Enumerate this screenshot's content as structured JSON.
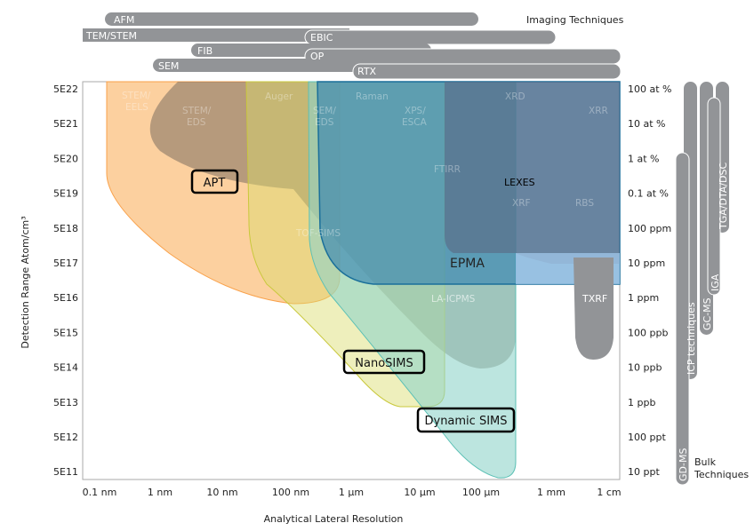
{
  "imaging": {
    "title": "Imaging Techniques",
    "bars": [
      "AFM",
      "TEM/STEM",
      "EBIC",
      "FIB",
      "OP",
      "SEM",
      "RTX"
    ]
  },
  "bulk": {
    "title_line1": "Bulk",
    "title_line2": "Techniques",
    "bars": [
      "GD-MS",
      "ICP techniques",
      "GC-MS",
      "IGA",
      "TGA/DTA/DSC"
    ]
  },
  "axes": {
    "xlabel": "Analytical Lateral Resolution",
    "ylabel": "Detection Range Atom/cm³",
    "xticks": [
      "0.1 nm",
      "1 nm",
      "10 nm",
      "100 nm",
      "1 µm",
      "10 µm",
      "100 µm",
      "1 mm",
      "1 cm"
    ],
    "yticks_left": [
      "5E22",
      "5E21",
      "5E20",
      "5E19",
      "5E18",
      "5E17",
      "5E16",
      "5E15",
      "5E14",
      "5E13",
      "5E12",
      "5E11"
    ],
    "yticks_right": [
      "100 at %",
      "10 at %",
      "1 at %",
      "0.1 at %",
      "100 ppm",
      "10 ppm",
      "1 ppm",
      "100 ppb",
      "10 ppb",
      "1 ppb",
      "100 ppt",
      "10 ppt"
    ]
  },
  "regions": {
    "stem_eels": [
      "STEM/",
      "EELS"
    ],
    "stem_eds": [
      "STEM/",
      "EDS"
    ],
    "auger": "Auger",
    "sem_eds": [
      "SEM/",
      "EDS"
    ],
    "raman": "Raman",
    "xps": [
      "XPS/",
      "ESCA"
    ],
    "xrd": "XRD",
    "xrr": "XRR",
    "ftirr": "FTIRR",
    "xrf": "XRF",
    "rbs": "RBS",
    "tof_sims": "TOF-SIMS",
    "la_icpms": "LA-ICPMS",
    "txrf": "TXRF",
    "epma": "EPMA",
    "lexes": "LEXES"
  },
  "highlighted": [
    "APT",
    "NanoSIMS",
    "Dynamic SIMS"
  ],
  "colors": {
    "apt": "#f9a14a",
    "nanosims": "#c9c83c",
    "dynamic_sims": "#5cc0b5",
    "epma": "#1a6f9a",
    "bars": "#929497"
  }
}
